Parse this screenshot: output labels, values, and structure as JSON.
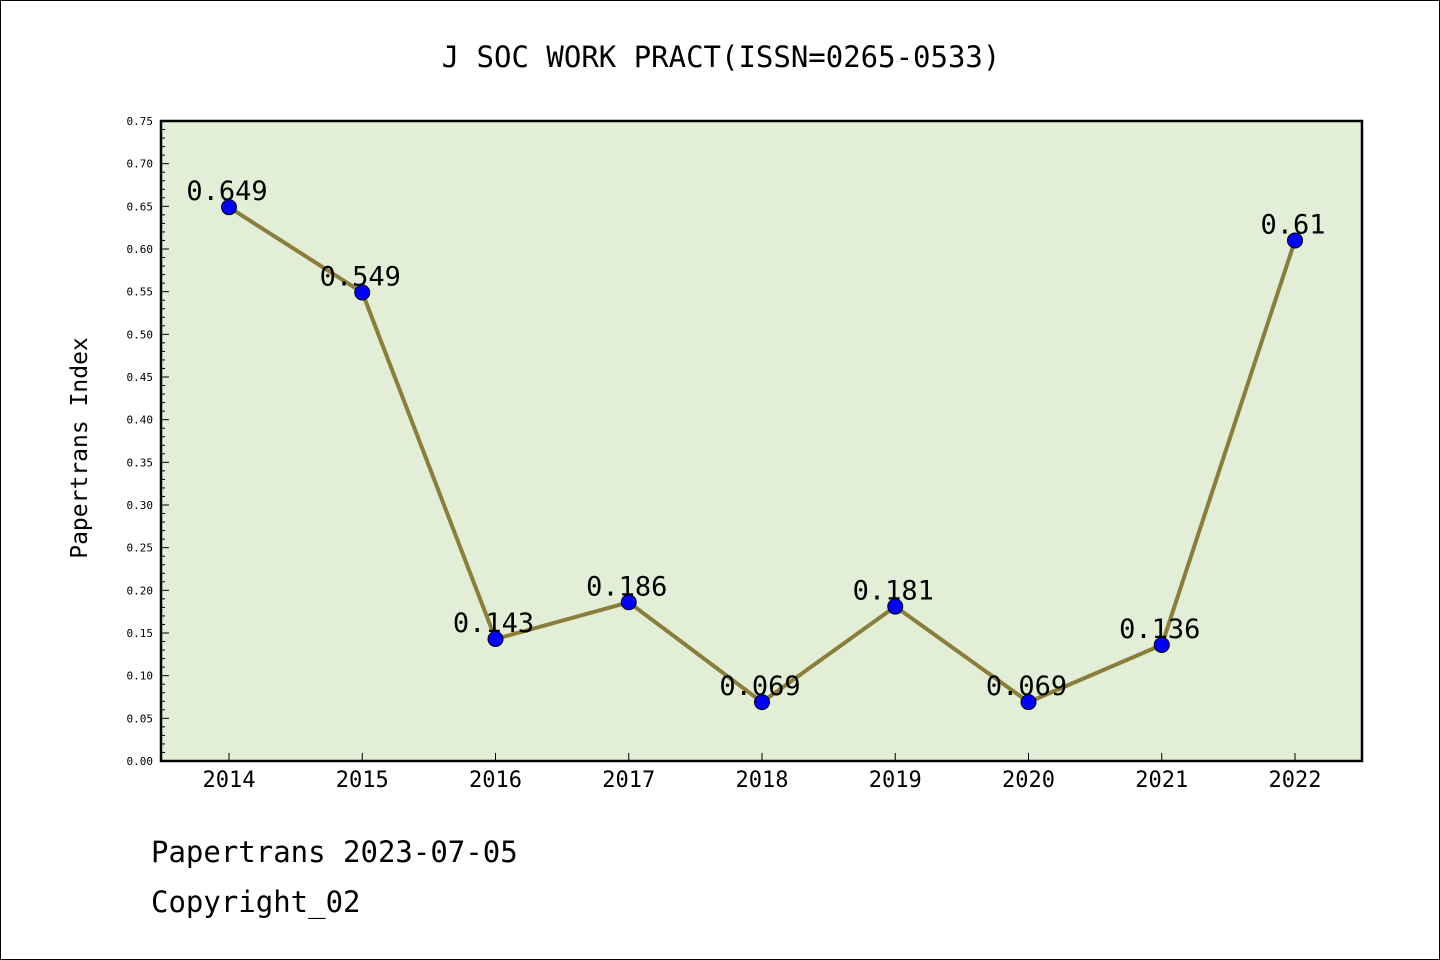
{
  "chart_data": {
    "type": "line",
    "title": "J SOC WORK PRACT(ISSN=0265-0533)",
    "xlabel": "",
    "ylabel": "Papertrans Index",
    "categories": [
      "2014",
      "2015",
      "2016",
      "2017",
      "2018",
      "2019",
      "2020",
      "2021",
      "2022"
    ],
    "series": [
      {
        "values": [
          0.649,
          0.549,
          0.143,
          0.186,
          0.069,
          0.181,
          0.069,
          0.136,
          0.61
        ]
      }
    ],
    "data_labels": [
      "0.649",
      "0.549",
      "0.143",
      "0.186",
      "0.069",
      "0.181",
      "0.069",
      "0.136",
      "0.61"
    ],
    "ylim": [
      0,
      0.75
    ],
    "yticks": [
      "0.00",
      "0.05",
      "0.10",
      "0.15",
      "0.20",
      "0.25",
      "0.30",
      "0.35",
      "0.40",
      "0.45",
      "0.50",
      "0.55",
      "0.60",
      "0.65",
      "0.70",
      "0.75"
    ],
    "grid": false,
    "legend": "none",
    "colors": {
      "plot_background": "#e2efd6",
      "line": "#8b7d3a",
      "marker": "#0000ff",
      "marker_edge": "#000000"
    }
  },
  "footer": {
    "line1": "Papertrans 2023-07-05",
    "line2": "Copyright_02"
  }
}
